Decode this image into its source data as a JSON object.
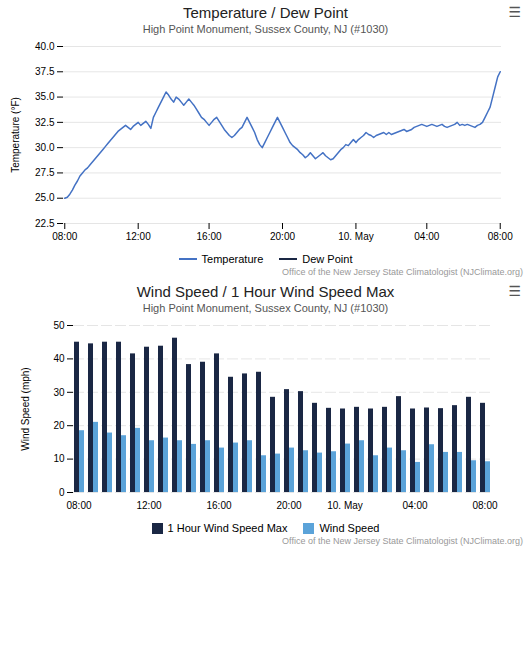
{
  "chart_data": [
    {
      "type": "line",
      "title": "Temperature / Dew Point",
      "subtitle": "High Point Monument, Sussex County, NJ (#1030)",
      "icon": "☰",
      "y_label": "Temperature (°F)",
      "credit": "Office of the New Jersey State Climatologist (NJClimate.org)",
      "categories": [
        "08:00",
        null,
        null,
        null,
        null,
        null,
        null,
        null,
        null,
        null,
        null,
        null,
        null,
        null,
        null,
        null,
        null,
        null,
        null,
        null,
        null,
        null,
        null,
        null,
        null,
        null,
        null,
        null,
        null,
        "12:00",
        null,
        null,
        null,
        null,
        null,
        null,
        null,
        null,
        null,
        null,
        null,
        null,
        null,
        null,
        null,
        null,
        null,
        null,
        null,
        null,
        null,
        null,
        null,
        null,
        null,
        null,
        null,
        "16:00",
        null,
        null,
        null,
        null,
        null,
        null,
        null,
        null,
        null,
        null,
        null,
        null,
        null,
        null,
        null,
        null,
        null,
        null,
        null,
        null,
        null,
        null,
        null,
        null,
        null,
        null,
        null,
        null,
        "20:00",
        null,
        null,
        null,
        null,
        null,
        null,
        null,
        null,
        null,
        null,
        null,
        null,
        null,
        null,
        null,
        null,
        null,
        null,
        null,
        null,
        null,
        null,
        null,
        null,
        null,
        null,
        null,
        null,
        "10. May",
        null,
        null,
        null,
        null,
        null,
        null,
        null,
        null,
        null,
        null,
        null,
        null,
        null,
        null,
        null,
        null,
        null,
        null,
        null,
        null,
        null,
        null,
        null,
        null,
        null,
        null,
        null,
        "04:00",
        null,
        null,
        null,
        null,
        null,
        null,
        null,
        null,
        null,
        null,
        null,
        null,
        null,
        null,
        null,
        null,
        null,
        null,
        null,
        null,
        null,
        null,
        null,
        null,
        null,
        null,
        null,
        null,
        "08:00"
      ],
      "series": [
        {
          "name": "Temperature",
          "color": "#4472c4",
          "values": [
            25.0,
            25.1,
            25.4,
            25.8,
            26.3,
            26.7,
            27.2,
            27.5,
            27.8,
            28.0,
            28.3,
            28.6,
            28.9,
            29.2,
            29.5,
            29.8,
            30.1,
            30.4,
            30.7,
            31.0,
            31.3,
            31.6,
            31.8,
            32.0,
            32.2,
            32.0,
            31.8,
            32.1,
            32.3,
            32.5,
            32.2,
            32.4,
            32.6,
            32.3,
            31.9,
            33.0,
            33.5,
            34.0,
            34.5,
            35.0,
            35.5,
            35.2,
            34.8,
            34.5,
            35.0,
            34.8,
            34.5,
            34.2,
            34.5,
            34.8,
            34.5,
            34.2,
            33.8,
            33.4,
            33.0,
            32.8,
            32.5,
            32.2,
            32.5,
            32.8,
            33.0,
            32.6,
            32.2,
            31.8,
            31.5,
            31.2,
            31.0,
            31.2,
            31.5,
            31.8,
            32.0,
            32.5,
            33.0,
            32.5,
            32.0,
            31.5,
            30.8,
            30.3,
            30.0,
            30.5,
            31.0,
            31.5,
            32.0,
            32.5,
            33.0,
            32.5,
            32.0,
            31.5,
            31.0,
            30.5,
            30.2,
            30.0,
            29.8,
            29.5,
            29.3,
            29.0,
            29.2,
            29.5,
            29.2,
            28.9,
            29.1,
            29.3,
            29.5,
            29.2,
            29.0,
            28.8,
            28.9,
            29.2,
            29.5,
            29.8,
            30.0,
            30.3,
            30.2,
            30.5,
            30.8,
            30.5,
            30.8,
            31.0,
            31.2,
            31.5,
            31.3,
            31.2,
            31.0,
            31.2,
            31.3,
            31.4,
            31.5,
            31.3,
            31.5,
            31.3,
            31.4,
            31.5,
            31.6,
            31.7,
            31.8,
            31.6,
            31.7,
            31.8,
            32.0,
            32.1,
            32.2,
            32.3,
            32.2,
            32.1,
            32.2,
            32.3,
            32.2,
            32.1,
            32.2,
            32.3,
            32.1,
            32.0,
            32.1,
            32.2,
            32.3,
            32.5,
            32.2,
            32.3,
            32.2,
            32.3,
            32.2,
            32.1,
            32.0,
            32.2,
            32.3,
            32.5,
            33.0,
            33.5,
            34.0,
            35.0,
            36.0,
            37.0,
            37.5
          ]
        },
        {
          "name": "Dew Point",
          "color": "#1a2744",
          "values": [
            null,
            null,
            null,
            null,
            null,
            null,
            null,
            null,
            null,
            null,
            null,
            null,
            null,
            null,
            null,
            null,
            null,
            null,
            null,
            null,
            null,
            null,
            null,
            null,
            null,
            null,
            null,
            null,
            null,
            null,
            null,
            null,
            null,
            null,
            null,
            null,
            null,
            null,
            null,
            null,
            null,
            null,
            null,
            null,
            null,
            null,
            null,
            null,
            null,
            null,
            null,
            null,
            null,
            null,
            null,
            null,
            null,
            null,
            null,
            null,
            null,
            null,
            null,
            null,
            null,
            null,
            null,
            null,
            null,
            null,
            null,
            null,
            null,
            null,
            null,
            null,
            null,
            null,
            null,
            null,
            null,
            null,
            null,
            null,
            null,
            null,
            null,
            null,
            null,
            null,
            null,
            null,
            null,
            null,
            null,
            null,
            null,
            null,
            null,
            null,
            null,
            null,
            null,
            null,
            null,
            null,
            null,
            null,
            null,
            null,
            null,
            null,
            null,
            null,
            null,
            null,
            null,
            null,
            null,
            null,
            null,
            null,
            null,
            null,
            null,
            null,
            null,
            null,
            null,
            null,
            null,
            null,
            null,
            null,
            null,
            null,
            null,
            null,
            null,
            null,
            null,
            null,
            null,
            null,
            null,
            null,
            null,
            null,
            null,
            null,
            null,
            null,
            null,
            null,
            null,
            null,
            null,
            null,
            null,
            null,
            null,
            null,
            null,
            null,
            null,
            null,
            null,
            null,
            null,
            null,
            null,
            null,
            null
          ]
        }
      ],
      "ylim": [
        22.5,
        40
      ],
      "yticks": [
        22.5,
        {
          "value": 25,
          "label": "25.0"
        },
        27.5,
        {
          "value": 30,
          "label": "30.0"
        },
        32.5,
        {
          "value": 35,
          "label": "35.0"
        },
        37.5,
        {
          "value": 40,
          "label": "40.0"
        }
      ],
      "grid": true,
      "legend": "bottom"
    },
    {
      "type": "bar",
      "title": "Wind Speed / 1 Hour Wind Speed Max",
      "subtitle": "High Point Monument, Sussex County, NJ (#1030)",
      "icon": "☰",
      "y_label": "Wind Speed (mph)",
      "credit": "Office of the New Jersey State Climatologist (NJClimate.org)",
      "categories": [
        "08:00",
        null,
        null,
        null,
        null,
        "12:00",
        null,
        null,
        null,
        null,
        "16:00",
        null,
        null,
        null,
        null,
        "20:00",
        null,
        null,
        null,
        "10. May",
        null,
        null,
        null,
        null,
        "04:00",
        null,
        null,
        null,
        null,
        "08:00"
      ],
      "series": [
        {
          "name": "1 Hour Wind Speed Max",
          "color": "#1a2744",
          "values": [
            45.0,
            44.5,
            45.0,
            45.0,
            41.5,
            43.5,
            43.8,
            46.2,
            38.3,
            39.0,
            41.5,
            34.5,
            35.5,
            36.0,
            28.5,
            30.8,
            30.2,
            26.7,
            25.2,
            25.0,
            25.5,
            25.0,
            25.5,
            28.7,
            25.0,
            25.3,
            25.1,
            26.0,
            28.5,
            26.7
          ]
        },
        {
          "name": "Wind Speed",
          "color": "#5ba3d9",
          "values": [
            18.5,
            21.0,
            17.8,
            17.0,
            19.2,
            15.5,
            16.3,
            15.5,
            14.4,
            15.5,
            13.3,
            14.8,
            15.5,
            11.0,
            11.5,
            13.3,
            12.5,
            11.8,
            12.2,
            14.5,
            15.5,
            11.0,
            13.3,
            12.5,
            9.0,
            14.3,
            12.0,
            12.0,
            9.5,
            9.2
          ]
        }
      ],
      "ylim": [
        0,
        50
      ],
      "yticks": [
        0,
        10,
        20,
        30,
        40,
        50
      ],
      "grid": true,
      "legend": "bottom"
    }
  ]
}
